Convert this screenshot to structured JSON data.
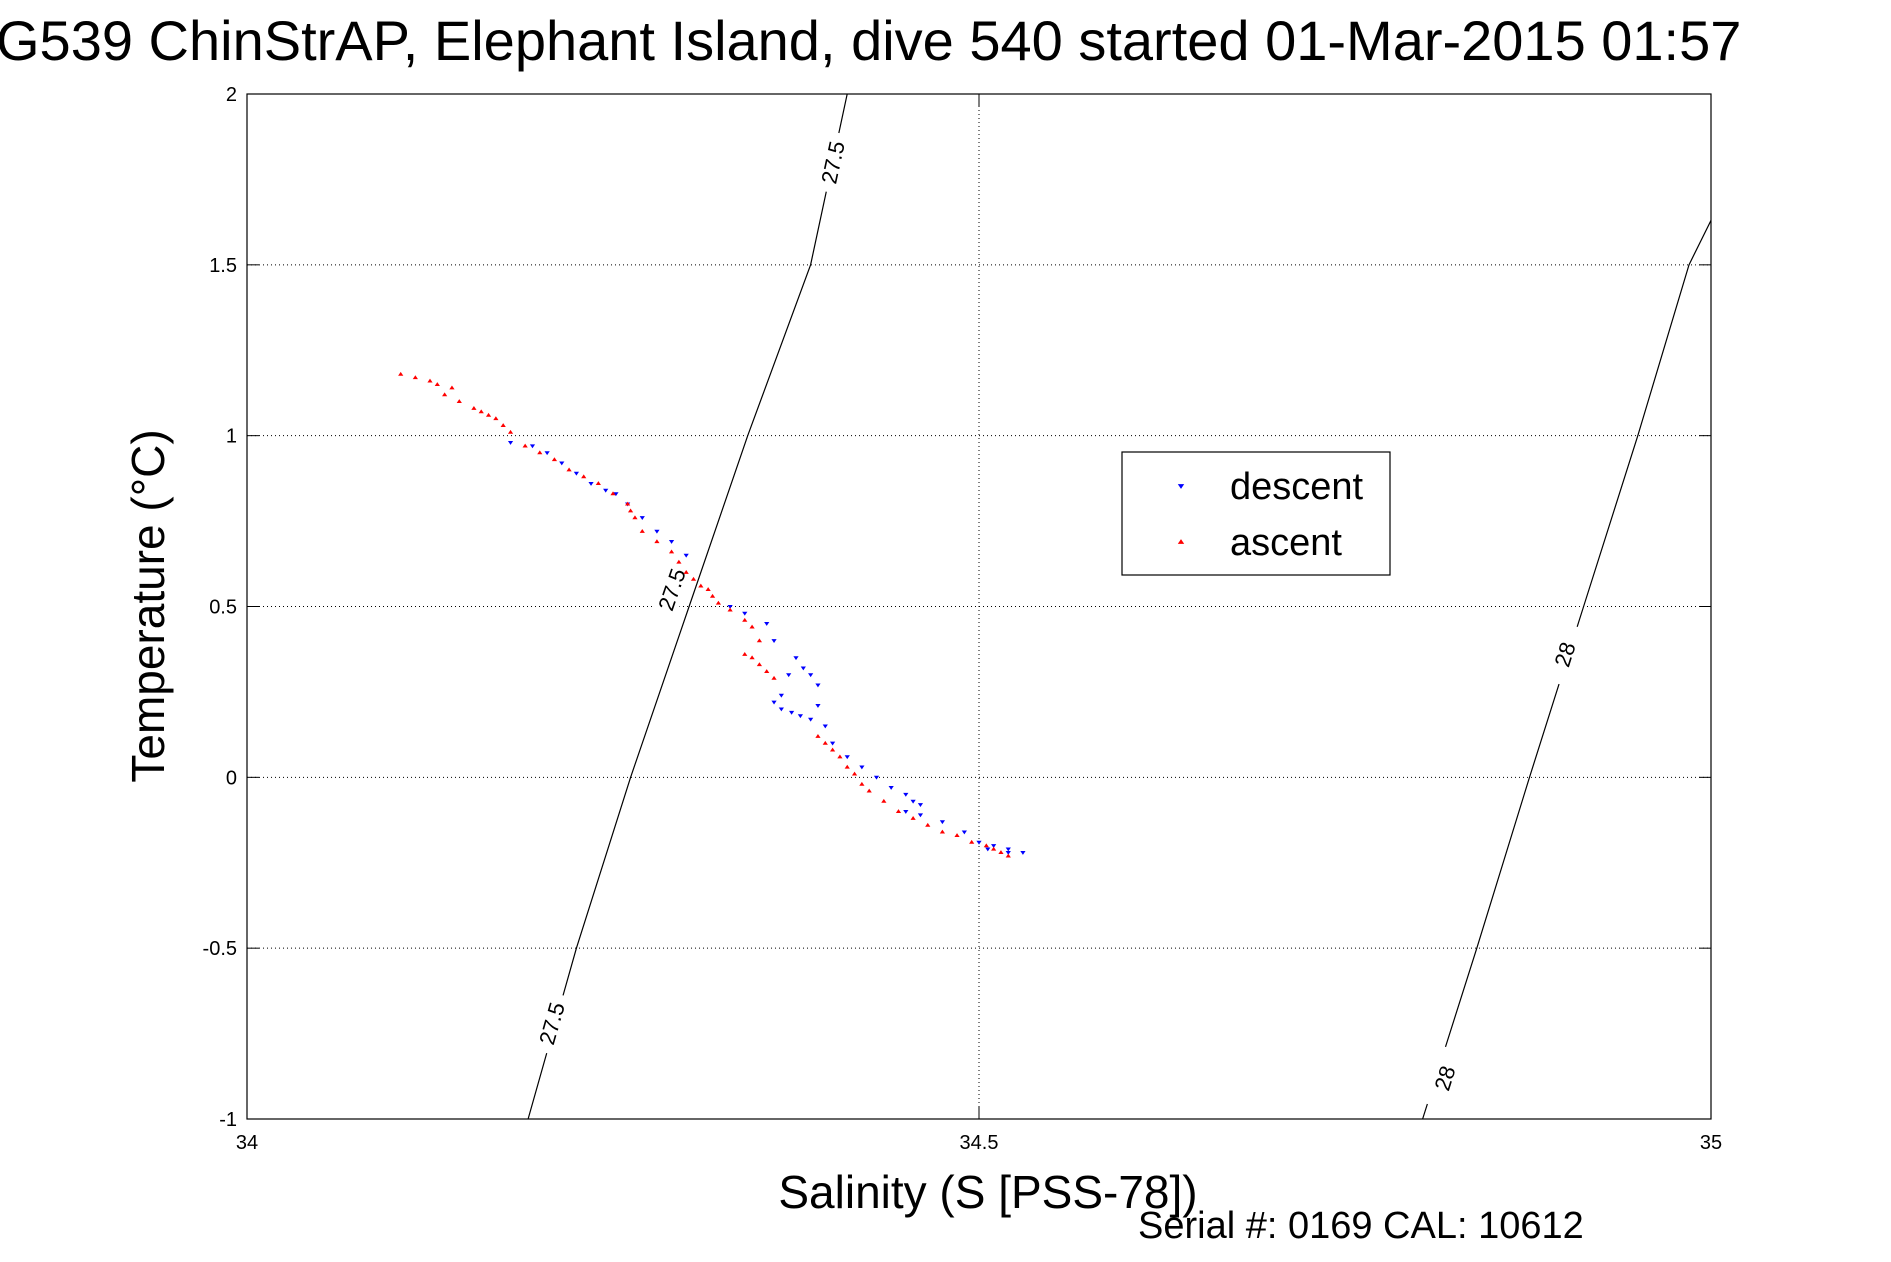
{
  "chart_data": {
    "type": "scatter",
    "title": "G539 ChinStrAP, Elephant Island, dive 540 started 01-Mar-2015 01:57",
    "xlabel": "Salinity (S [PSS-78])",
    "ylabel": "Temperature (°C)",
    "footer": "Serial #: 0169 CAL: 10612",
    "xlim": [
      34,
      35
    ],
    "ylim": [
      -1,
      2
    ],
    "xticks": [
      34,
      34.5,
      35
    ],
    "xtick_labels": [
      "34",
      "34.5",
      "35"
    ],
    "yticks": [
      -1,
      -0.5,
      0,
      0.5,
      1,
      1.5,
      2
    ],
    "ytick_labels": [
      "-1",
      "-0.5",
      "0",
      "0.5",
      "1",
      "1.5",
      "2"
    ],
    "grid": true,
    "legend_position": "upper-center-right",
    "series": [
      {
        "name": "descent",
        "color": "#0000ff",
        "marker": "down-triangle",
        "points": [
          [
            34.18,
            0.98
          ],
          [
            34.195,
            0.97
          ],
          [
            34.205,
            0.95
          ],
          [
            34.215,
            0.92
          ],
          [
            34.225,
            0.89
          ],
          [
            34.235,
            0.86
          ],
          [
            34.245,
            0.84
          ],
          [
            34.252,
            0.83
          ],
          [
            34.26,
            0.8
          ],
          [
            34.27,
            0.76
          ],
          [
            34.28,
            0.72
          ],
          [
            34.29,
            0.69
          ],
          [
            34.3,
            0.65
          ],
          [
            34.33,
            0.5
          ],
          [
            34.34,
            0.48
          ],
          [
            34.355,
            0.45
          ],
          [
            34.36,
            0.4
          ],
          [
            34.375,
            0.35
          ],
          [
            34.38,
            0.32
          ],
          [
            34.385,
            0.3
          ],
          [
            34.39,
            0.27
          ],
          [
            34.37,
            0.3
          ],
          [
            34.39,
            0.21
          ],
          [
            34.365,
            0.24
          ],
          [
            34.36,
            0.22
          ],
          [
            34.365,
            0.2
          ],
          [
            34.372,
            0.19
          ],
          [
            34.378,
            0.18
          ],
          [
            34.385,
            0.17
          ],
          [
            34.395,
            0.15
          ],
          [
            34.4,
            0.1
          ],
          [
            34.41,
            0.06
          ],
          [
            34.42,
            0.03
          ],
          [
            34.43,
            0.0
          ],
          [
            34.44,
            -0.03
          ],
          [
            34.45,
            -0.05
          ],
          [
            34.455,
            -0.07
          ],
          [
            34.46,
            -0.08
          ],
          [
            34.45,
            -0.1
          ],
          [
            34.46,
            -0.11
          ],
          [
            34.475,
            -0.13
          ],
          [
            34.49,
            -0.16
          ],
          [
            34.5,
            -0.19
          ],
          [
            34.51,
            -0.2
          ],
          [
            34.52,
            -0.21
          ],
          [
            34.53,
            -0.22
          ],
          [
            34.52,
            -0.22
          ],
          [
            34.506,
            -0.21
          ]
        ]
      },
      {
        "name": "ascent",
        "color": "#ff0000",
        "marker": "up-triangle",
        "points": [
          [
            34.105,
            1.18
          ],
          [
            34.115,
            1.17
          ],
          [
            34.125,
            1.16
          ],
          [
            34.13,
            1.15
          ],
          [
            34.14,
            1.14
          ],
          [
            34.135,
            1.12
          ],
          [
            34.145,
            1.1
          ],
          [
            34.155,
            1.08
          ],
          [
            34.16,
            1.07
          ],
          [
            34.165,
            1.06
          ],
          [
            34.17,
            1.05
          ],
          [
            34.175,
            1.03
          ],
          [
            34.18,
            1.01
          ],
          [
            34.19,
            0.97
          ],
          [
            34.2,
            0.95
          ],
          [
            34.21,
            0.93
          ],
          [
            34.22,
            0.9
          ],
          [
            34.23,
            0.88
          ],
          [
            34.24,
            0.86
          ],
          [
            34.25,
            0.83
          ],
          [
            34.26,
            0.8
          ],
          [
            34.262,
            0.78
          ],
          [
            34.265,
            0.76
          ],
          [
            34.27,
            0.72
          ],
          [
            34.28,
            0.69
          ],
          [
            34.29,
            0.66
          ],
          [
            34.295,
            0.63
          ],
          [
            34.3,
            0.6
          ],
          [
            34.305,
            0.58
          ],
          [
            34.31,
            0.56
          ],
          [
            34.315,
            0.55
          ],
          [
            34.318,
            0.53
          ],
          [
            34.322,
            0.51
          ],
          [
            34.33,
            0.49
          ],
          [
            34.34,
            0.46
          ],
          [
            34.345,
            0.44
          ],
          [
            34.35,
            0.4
          ],
          [
            34.34,
            0.36
          ],
          [
            34.345,
            0.35
          ],
          [
            34.35,
            0.33
          ],
          [
            34.355,
            0.31
          ],
          [
            34.36,
            0.29
          ],
          [
            34.39,
            0.12
          ],
          [
            34.395,
            0.1
          ],
          [
            34.4,
            0.08
          ],
          [
            34.405,
            0.06
          ],
          [
            34.41,
            0.03
          ],
          [
            34.415,
            0.01
          ],
          [
            34.42,
            -0.02
          ],
          [
            34.425,
            -0.04
          ],
          [
            34.435,
            -0.07
          ],
          [
            34.445,
            -0.1
          ],
          [
            34.455,
            -0.12
          ],
          [
            34.465,
            -0.14
          ],
          [
            34.475,
            -0.16
          ],
          [
            34.485,
            -0.17
          ],
          [
            34.495,
            -0.19
          ],
          [
            34.505,
            -0.2
          ],
          [
            34.51,
            -0.21
          ],
          [
            34.515,
            -0.22
          ],
          [
            34.52,
            -0.23
          ]
        ]
      }
    ],
    "contours": [
      {
        "label": "27.5",
        "points": [
          [
            34.192,
            -1.0
          ],
          [
            34.225,
            -0.5
          ],
          [
            34.262,
            0.0
          ],
          [
            34.302,
            0.5
          ],
          [
            34.342,
            1.0
          ],
          [
            34.385,
            1.5
          ],
          [
            34.41,
            2.0
          ]
        ],
        "label_positions": [
          [
            34.208,
            -0.72
          ],
          [
            34.29,
            0.55
          ],
          [
            34.4,
            1.8
          ]
        ]
      },
      {
        "label": "28",
        "points": [
          [
            34.803,
            -1.0
          ],
          [
            34.84,
            -0.5
          ],
          [
            34.876,
            0.0
          ],
          [
            34.913,
            0.5
          ],
          [
            34.95,
            1.0
          ],
          [
            34.985,
            1.5
          ],
          [
            35.0,
            1.63
          ]
        ],
        "label_positions": [
          [
            34.818,
            -0.88
          ],
          [
            34.9,
            0.36
          ]
        ]
      }
    ]
  },
  "legend": {
    "entries": [
      "descent",
      "ascent"
    ]
  }
}
